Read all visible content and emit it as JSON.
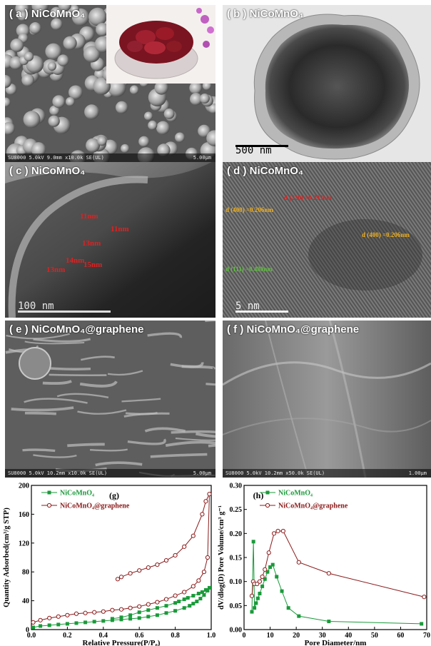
{
  "panels": {
    "a": {
      "label": "( a ) NiCoMnO₄",
      "footer": "SU8000 5.0kV 9.0mm x10.0k SE(UL)",
      "scale": "5.00μm"
    },
    "b": {
      "label": "( b ) NiCoMnO₄",
      "scale": "500 nm"
    },
    "c": {
      "label": "( c ) NiCoMnO₄",
      "scale": "100 nm",
      "annotations": [
        "11nm",
        "11nm",
        "13nm",
        "14nm",
        "15nm",
        "13nm"
      ]
    },
    "d": {
      "label": "( d ) NiCoMnO₄",
      "scale": "5 nm",
      "annotations": {
        "d400_left": "d (400) =0.206nm",
        "d220": "d (220) =0.293nm",
        "d400_right": "d (400) =0.206nm",
        "d111": "d (111) =0.480nm"
      }
    },
    "e": {
      "label": "( e ) NiCoMnO₄@graphene",
      "footer": "SU8000 5.0kV 10.2mm x10.0k SE(UL)",
      "scale": "5.00μm"
    },
    "f": {
      "label": "( f ) NiCoMnO₄@graphene",
      "footer": "SU8000 5.0kV 10.2mm x50.0k SE(UL)",
      "scale": "1.00μm"
    }
  },
  "colors": {
    "green": "#1a9a3a",
    "darkred": "#8b1a1a"
  },
  "chart_data": [
    {
      "type": "line",
      "panel": "(g)",
      "xlabel": "Relative Pressure(P/P₀)",
      "ylabel": "Quantity Adsorbed(cm³/g STP)",
      "xlim": [
        0.0,
        1.0
      ],
      "ylim": [
        0,
        200
      ],
      "xticks": [
        "0.0",
        "0.2",
        "0.4",
        "0.6",
        "0.8",
        "1.0"
      ],
      "yticks": [
        "0",
        "40",
        "80",
        "120",
        "160",
        "200"
      ],
      "legend": "top-left",
      "series": [
        {
          "name": "NiCoMnO₄",
          "color": "#1a9a3a",
          "marker": "square",
          "x": [
            0.01,
            0.05,
            0.1,
            0.15,
            0.2,
            0.25,
            0.3,
            0.35,
            0.4,
            0.45,
            0.5,
            0.55,
            0.6,
            0.65,
            0.7,
            0.75,
            0.8,
            0.85,
            0.88,
            0.9,
            0.92,
            0.94,
            0.96,
            0.98,
            0.99,
            0.97,
            0.95,
            0.93,
            0.9,
            0.87,
            0.85,
            0.82,
            0.8,
            0.75,
            0.7,
            0.65,
            0.6,
            0.55,
            0.5,
            0.45
          ],
          "y": [
            3,
            5,
            6,
            7,
            8,
            9,
            10,
            11,
            12,
            13,
            14,
            15,
            16,
            18,
            20,
            23,
            26,
            30,
            33,
            36,
            39,
            43,
            48,
            54,
            58,
            55,
            52,
            50,
            47,
            44,
            42,
            39,
            37,
            33,
            30,
            27,
            24,
            20,
            17,
            15
          ]
        },
        {
          "name": "NiCoMnO₄@graphene",
          "color": "#8b1a1a",
          "marker": "circle",
          "x": [
            0.01,
            0.05,
            0.1,
            0.15,
            0.2,
            0.25,
            0.3,
            0.35,
            0.4,
            0.45,
            0.5,
            0.55,
            0.6,
            0.65,
            0.7,
            0.75,
            0.8,
            0.85,
            0.9,
            0.93,
            0.96,
            0.98,
            0.99,
            0.97,
            0.95,
            0.9,
            0.85,
            0.8,
            0.75,
            0.7,
            0.65,
            0.6,
            0.55,
            0.5,
            0.48
          ],
          "y": [
            10,
            13,
            16,
            18,
            20,
            22,
            23,
            24,
            25,
            27,
            28,
            30,
            32,
            35,
            38,
            42,
            47,
            52,
            60,
            68,
            80,
            100,
            188,
            178,
            160,
            130,
            115,
            103,
            96,
            90,
            86,
            82,
            78,
            73,
            70
          ]
        }
      ]
    },
    {
      "type": "line",
      "panel": "(h)",
      "xlabel": "Pore Diameter/nm",
      "ylabel": "dV/dlog(D) Pore Volume/cm³ g⁻¹",
      "xlim": [
        0,
        70
      ],
      "ylim": [
        0.0,
        0.3
      ],
      "xticks": [
        "0",
        "10",
        "20",
        "30",
        "40",
        "50",
        "60",
        "70"
      ],
      "yticks": [
        "0.00",
        "0.05",
        "0.10",
        "0.15",
        "0.20",
        "0.25",
        "0.30"
      ],
      "legend": "top-left",
      "series": [
        {
          "name": "NiCoMnO₄",
          "color": "#1a9a3a",
          "marker": "square",
          "x": [
            3.0,
            3.6,
            4.0,
            4.6,
            5.3,
            6.0,
            7.0,
            8.0,
            9.0,
            10.0,
            11.0,
            12.5,
            14.5,
            17.0,
            21.0,
            32.5,
            68.0
          ],
          "y": [
            0.037,
            0.183,
            0.045,
            0.055,
            0.065,
            0.075,
            0.09,
            0.105,
            0.12,
            0.13,
            0.135,
            0.11,
            0.08,
            0.045,
            0.028,
            0.017,
            0.012
          ]
        },
        {
          "name": "NiCoMnO₄@graphene",
          "color": "#8b1a1a",
          "marker": "circle",
          "x": [
            3.0,
            3.5,
            4.0,
            5.0,
            6.0,
            7.0,
            8.0,
            9.5,
            11.5,
            13.0,
            15.0,
            21.0,
            32.5,
            69.0
          ],
          "y": [
            0.07,
            0.1,
            0.095,
            0.095,
            0.1,
            0.11,
            0.125,
            0.16,
            0.2,
            0.205,
            0.205,
            0.14,
            0.117,
            0.068
          ]
        }
      ]
    }
  ]
}
